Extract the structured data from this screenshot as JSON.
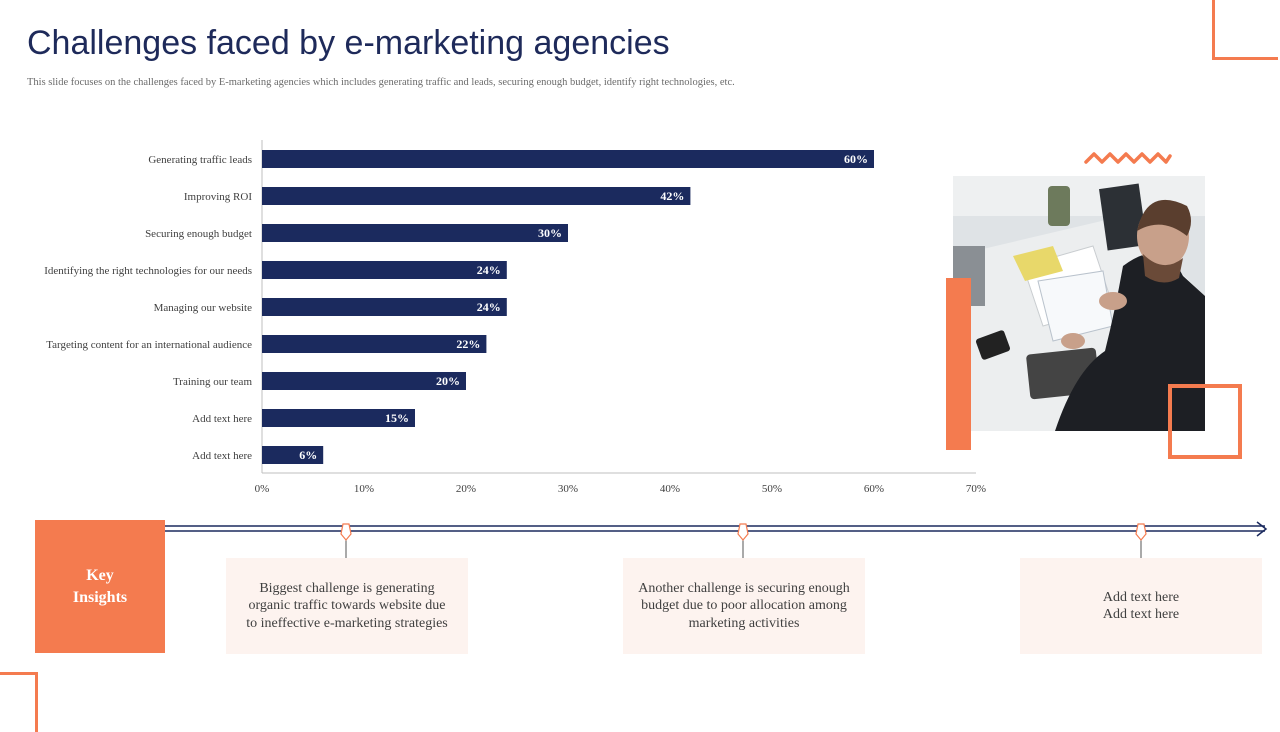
{
  "header": {
    "title": "Challenges faced by e-marketing agencies",
    "subtitle": "This slide focuses on the challenges  faced by E-marketing agencies  which includes generating  traffic and leads,  securing enough budget,  identify right  technologies, etc."
  },
  "chart_data": {
    "type": "bar",
    "orientation": "horizontal",
    "categories": [
      "Generating traffic leads",
      "Improving ROI",
      "Securing enough budget",
      "Identifying the right technologies for our needs",
      "Managing our website",
      "Targeting content for an international audience",
      "Training our team",
      "Add text here",
      "Add text here"
    ],
    "values": [
      60,
      42,
      30,
      24,
      24,
      22,
      20,
      15,
      6
    ],
    "value_labels": [
      "60%",
      "42%",
      "30%",
      "24%",
      "24%",
      "22%",
      "20%",
      "15%",
      "6%"
    ],
    "xlim": [
      0,
      70
    ],
    "xticks": [
      "0%",
      "10%",
      "20%",
      "30%",
      "40%",
      "50%",
      "60%",
      "70%"
    ],
    "bar_color": "#1b2a5e",
    "grid": false,
    "title": "",
    "xlabel": "",
    "ylabel": ""
  },
  "key_insights": {
    "label": "Key Insights",
    "items": [
      {
        "lines": [
          "Biggest challenge is generating",
          "organic traffic towards website due",
          "to ineffective e-marketing strategies"
        ]
      },
      {
        "lines": [
          "Another challenge is securing enough",
          "budget due to poor allocation  among",
          "marketing activities"
        ]
      },
      {
        "lines": [
          "Add text here",
          "Add text here"
        ]
      }
    ]
  },
  "colors": {
    "accent": "#f47b4f",
    "navy": "#1b2a5e",
    "insight_bg": "#fdf3ef"
  },
  "icons": {
    "timeline_pin": "pin-icon",
    "timeline_arrow": "arrow-right-icon"
  }
}
